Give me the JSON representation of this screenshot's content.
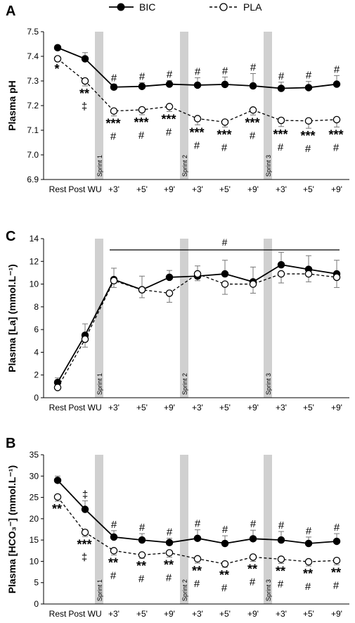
{
  "legend": {
    "position": "top",
    "entries": [
      {
        "name": "BIC",
        "marker": "filled-circle",
        "line": "solid",
        "color": "#000000"
      },
      {
        "name": "PLA",
        "marker": "open-circle",
        "line": "dashed",
        "color": "#000000"
      }
    ]
  },
  "categories": [
    "Rest",
    "Post WU",
    "+3'",
    "+5'",
    "+9'",
    "+3'",
    "+5'",
    "+9'",
    "+3'",
    "+5'",
    "+9'"
  ],
  "colors": {
    "sprint_band": "#d0d0d0",
    "axis": "#000000"
  },
  "chart_data": [
    {
      "panel": "A",
      "type": "line",
      "ylabel": "Plasma pH",
      "ylim": [
        6.9,
        7.5
      ],
      "yticks": [
        "6.9",
        "7.0",
        "7.1",
        "7.2",
        "7.3",
        "7.4",
        "7.5"
      ],
      "sprints": [
        {
          "label": "Sprint 1",
          "after_index": 1
        },
        {
          "label": "Sprint 2",
          "after_index": 4
        },
        {
          "label": "Sprint 3",
          "after_index": 7
        }
      ],
      "series": [
        {
          "name": "BIC",
          "values": [
            7.435,
            7.39,
            7.275,
            7.278,
            7.287,
            7.283,
            7.286,
            7.28,
            7.27,
            7.273,
            7.287
          ],
          "errors": [
            0.005,
            0.025,
            0.012,
            0.015,
            0.015,
            0.03,
            0.03,
            0.05,
            0.025,
            0.025,
            0.035
          ]
        },
        {
          "name": "PLA",
          "values": [
            7.39,
            7.3,
            7.178,
            7.183,
            7.196,
            7.147,
            7.133,
            7.182,
            7.14,
            7.138,
            7.143
          ],
          "errors": [
            0.01,
            0.02,
            0.02,
            0.02,
            0.02,
            0.025,
            0.02,
            0.02,
            0.025,
            0.03,
            0.03
          ]
        }
      ],
      "above_marks": [
        "",
        "",
        "#",
        "#",
        "#",
        "#",
        "#",
        "#",
        "#",
        "#",
        "#"
      ],
      "below_marks": [
        [
          "*"
        ],
        [
          "**",
          "‡"
        ],
        [
          "***",
          "#"
        ],
        [
          "***",
          "#"
        ],
        [
          "***",
          "#"
        ],
        [
          "***",
          "#"
        ],
        [
          "***",
          "#"
        ],
        [
          "***",
          "#"
        ],
        [
          "***",
          "#"
        ],
        [
          "***",
          "#"
        ],
        [
          "***",
          "#"
        ]
      ]
    },
    {
      "panel": "C",
      "type": "line",
      "ylabel": "Plasma [La] (mmol.L⁻¹)",
      "ylim": [
        0,
        14
      ],
      "yticks": [
        "0",
        "2",
        "4",
        "6",
        "8",
        "10",
        "12",
        "14"
      ],
      "sprints": [
        {
          "label": "Sprint 1",
          "after_index": 1
        },
        {
          "label": "Sprint 2",
          "after_index": 4
        },
        {
          "label": "Sprint 3",
          "after_index": 7
        }
      ],
      "bracket": {
        "label": "#",
        "from_index": 2,
        "to_index": 10
      },
      "series": [
        {
          "name": "BIC",
          "values": [
            1.35,
            5.5,
            10.4,
            9.5,
            10.6,
            10.7,
            10.9,
            10.2,
            11.7,
            11.3,
            10.9
          ],
          "errors": [
            0.4,
            1.0,
            1.0,
            1.2,
            0.6,
            0.9,
            1.2,
            1.3,
            1.1,
            1.2,
            1.2
          ]
        },
        {
          "name": "PLA",
          "values": [
            0.9,
            5.15,
            10.3,
            9.5,
            9.2,
            10.9,
            10.0,
            10.0,
            10.9,
            10.9,
            10.6
          ],
          "errors": [
            0.2,
            0.7,
            0.6,
            0.7,
            0.8,
            0.6,
            0.9,
            0.8,
            0.8,
            0.7,
            0.9
          ]
        }
      ]
    },
    {
      "panel": "B",
      "type": "line",
      "ylabel": "Plasma [HCO₃⁻] (mmol.L⁻¹)",
      "ylim": [
        0,
        35
      ],
      "yticks": [
        "0",
        "5",
        "10",
        "15",
        "20",
        "25",
        "30",
        "35"
      ],
      "sprints": [
        {
          "label": "Sprint 1",
          "after_index": 1
        },
        {
          "label": "Sprint 2",
          "after_index": 4
        },
        {
          "label": "Sprint 3",
          "after_index": 7
        }
      ],
      "series": [
        {
          "name": "BIC",
          "values": [
            29.0,
            22.2,
            15.7,
            15.0,
            14.4,
            15.4,
            14.2,
            15.3,
            15.0,
            14.2,
            14.7
          ],
          "errors": [
            1.0,
            2.0,
            1.5,
            1.5,
            1.0,
            2.0,
            1.8,
            2.0,
            2.0,
            1.5,
            1.8
          ]
        },
        {
          "name": "PLA",
          "values": [
            25.1,
            16.8,
            12.5,
            11.5,
            12.0,
            10.6,
            9.4,
            11.0,
            10.5,
            9.9,
            10.2
          ],
          "errors": [
            1.0,
            1.0,
            1.0,
            0.8,
            1.0,
            1.0,
            0.8,
            1.0,
            1.0,
            1.0,
            1.0
          ]
        }
      ],
      "above_marks": [
        "",
        "‡",
        "#",
        "#",
        "#",
        "#",
        "#",
        "#",
        "#",
        "#",
        "#"
      ],
      "below_marks": [
        [
          "**"
        ],
        [
          "***",
          "‡"
        ],
        [
          "**",
          "#"
        ],
        [
          "**",
          "#"
        ],
        [
          "**",
          "#"
        ],
        [
          "**",
          "#"
        ],
        [
          "**",
          "#"
        ],
        [
          "**",
          "#"
        ],
        [
          "**",
          "#"
        ],
        [
          "**",
          "#"
        ],
        [
          "**",
          "#"
        ]
      ]
    }
  ]
}
